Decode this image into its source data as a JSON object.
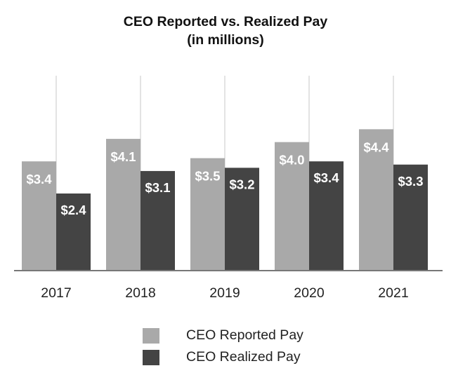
{
  "chart_data": {
    "type": "bar",
    "title": "CEO Reported vs. Realized Pay",
    "subtitle": "(in millions)",
    "categories": [
      "2017",
      "2018",
      "2019",
      "2020",
      "2021"
    ],
    "series": [
      {
        "name": "CEO Reported Pay",
        "color": "#a9a9a9",
        "values": [
          3.4,
          4.1,
          3.5,
          4.0,
          4.4
        ],
        "labels": [
          "$3.4",
          "$4.1",
          "$3.5",
          "$4.0",
          "$4.4"
        ]
      },
      {
        "name": "CEO Realized Pay",
        "color": "#444444",
        "values": [
          2.4,
          3.1,
          3.2,
          3.4,
          3.3
        ],
        "labels": [
          "$2.4",
          "$3.1",
          "$3.2",
          "$3.4",
          "$3.3"
        ]
      }
    ],
    "ylim": [
      0,
      6
    ],
    "grid": "vertical category lines",
    "legend": "bottom",
    "xlabel": "",
    "ylabel": ""
  }
}
